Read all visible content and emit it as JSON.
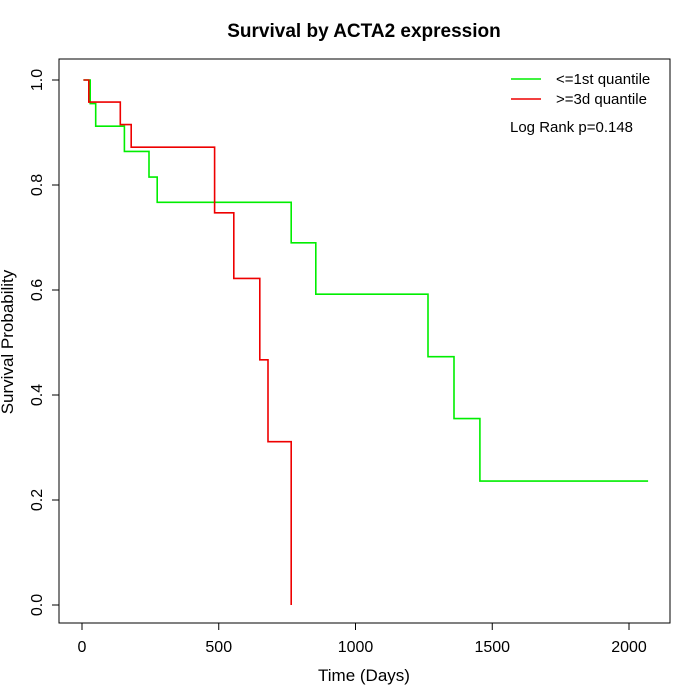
{
  "chart_data": {
    "type": "line",
    "chart_subtype": "kaplan-meier step",
    "title": "Survival by ACTA2 expression",
    "xlabel": "Time (Days)",
    "ylabel": "Survival Probability",
    "xlim": [
      0,
      2070
    ],
    "ylim": [
      0,
      1
    ],
    "x_ticks": [
      0,
      500,
      1000,
      1500,
      2000
    ],
    "y_ticks": [
      0.0,
      0.2,
      0.4,
      0.6,
      0.8,
      1.0
    ],
    "y_tick_labels": [
      "0.0",
      "0.2",
      "0.4",
      "0.6",
      "0.8",
      "1.0"
    ],
    "grid": false,
    "legend_position": "top-right",
    "annotation": "Log Rank p=0.148",
    "series": [
      {
        "name": "<=1st quantile",
        "color": "#00ee00",
        "points": [
          [
            5,
            1.0
          ],
          [
            30,
            1.0
          ],
          [
            30,
            0.955
          ],
          [
            50,
            0.955
          ],
          [
            50,
            0.912
          ],
          [
            155,
            0.912
          ],
          [
            155,
            0.864
          ],
          [
            245,
            0.864
          ],
          [
            245,
            0.815
          ],
          [
            275,
            0.815
          ],
          [
            275,
            0.767
          ],
          [
            765,
            0.767
          ],
          [
            765,
            0.69
          ],
          [
            855,
            0.69
          ],
          [
            855,
            0.592
          ],
          [
            1265,
            0.592
          ],
          [
            1265,
            0.473
          ],
          [
            1360,
            0.473
          ],
          [
            1360,
            0.355
          ],
          [
            1455,
            0.355
          ],
          [
            1455,
            0.236
          ],
          [
            2070,
            0.236
          ]
        ]
      },
      {
        "name": ">=3d quantile",
        "color": "#ee0000",
        "points": [
          [
            5,
            1.0
          ],
          [
            25,
            1.0
          ],
          [
            25,
            0.958
          ],
          [
            140,
            0.958
          ],
          [
            140,
            0.915
          ],
          [
            180,
            0.915
          ],
          [
            180,
            0.872
          ],
          [
            485,
            0.872
          ],
          [
            485,
            0.747
          ],
          [
            555,
            0.747
          ],
          [
            555,
            0.622
          ],
          [
            650,
            0.622
          ],
          [
            650,
            0.467
          ],
          [
            680,
            0.467
          ],
          [
            680,
            0.311
          ],
          [
            765,
            0.311
          ],
          [
            765,
            0.0
          ]
        ]
      }
    ]
  }
}
